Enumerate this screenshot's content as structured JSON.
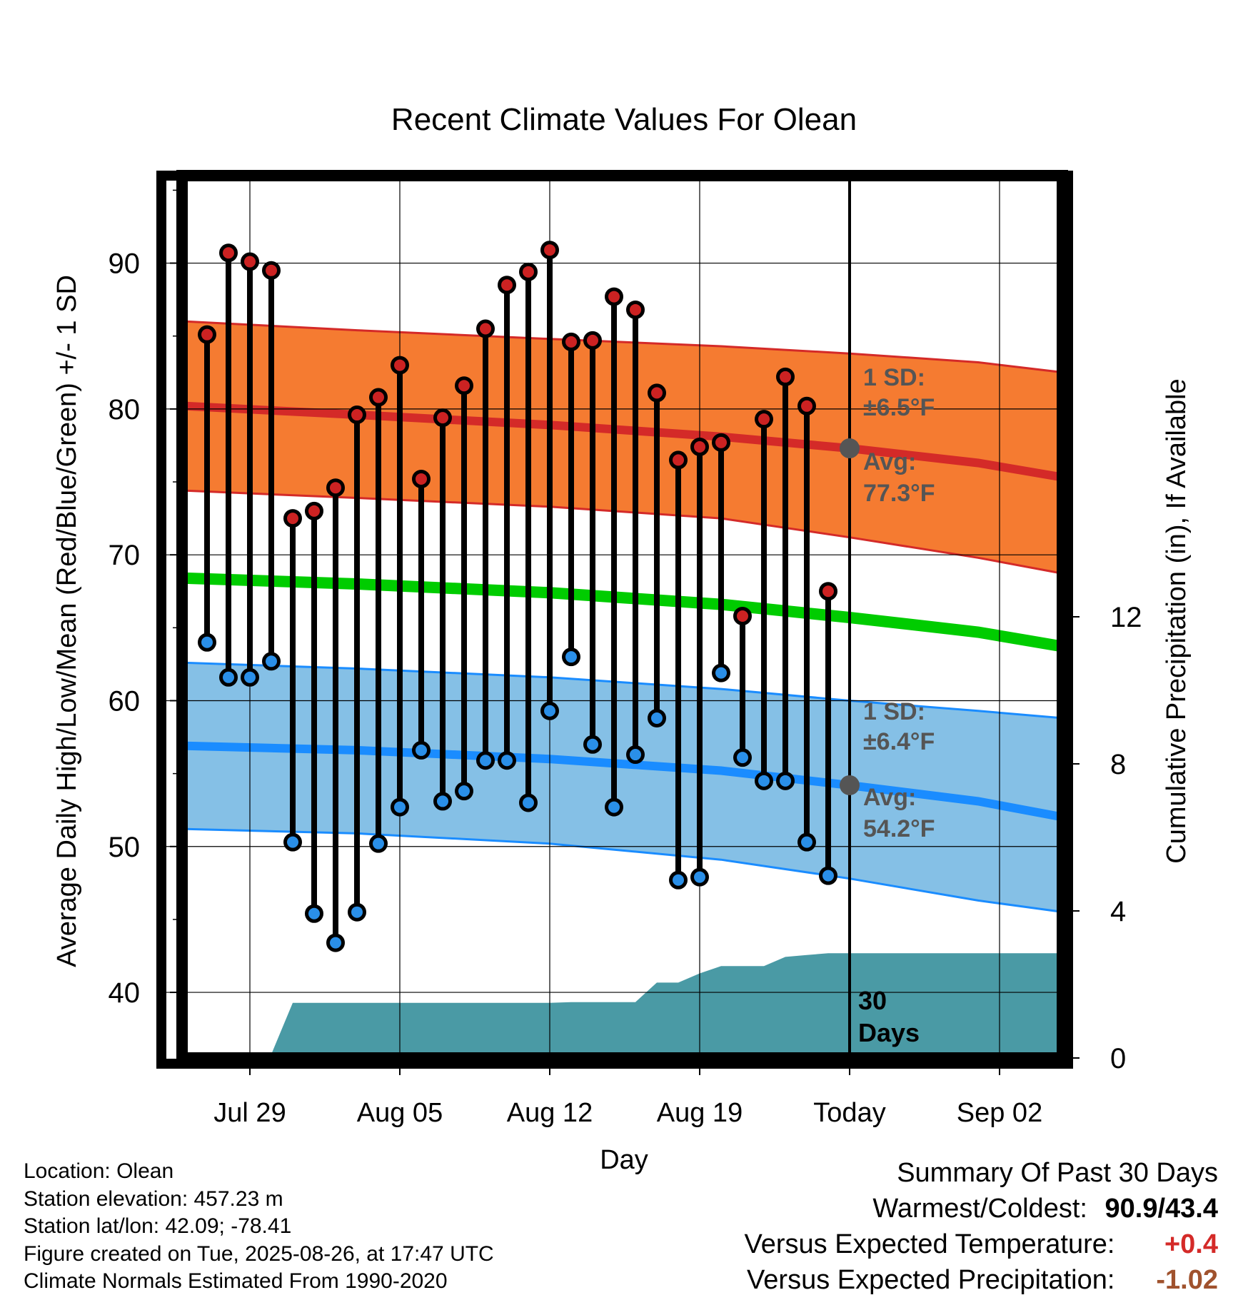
{
  "chart_data": {
    "type": "line",
    "title": "Recent Climate Values For Olean",
    "xlabel": "Day",
    "ylabel": "Average Daily High/Low/Mean (Red/Blue/Green) +/- 1 SD",
    "ylabel_right": "Cumulative Precipitation (in), If Available",
    "ylim": [
      35.5,
      96
    ],
    "ylim_right": [
      0,
      24
    ],
    "yticks": [
      40,
      50,
      60,
      70,
      80,
      90
    ],
    "yticks_right": [
      0,
      4,
      8,
      12
    ],
    "xticks": [
      {
        "day": 0,
        "label": "Jul 29"
      },
      {
        "day": 7,
        "label": "Aug 05"
      },
      {
        "day": 14,
        "label": "Aug 12"
      },
      {
        "day": 21,
        "label": "Aug 19"
      },
      {
        "day": 28,
        "label": "Today"
      },
      {
        "day": 35,
        "label": "Sep 02"
      }
    ],
    "today_day": 28,
    "xlim": [
      -3,
      38
    ],
    "x_start_date": "2025-07-29",
    "observations": {
      "days": [
        -2,
        -1,
        0,
        1,
        2,
        3,
        4,
        5,
        6,
        7,
        8,
        9,
        10,
        11,
        12,
        13,
        14,
        15,
        16,
        17,
        18,
        19,
        20,
        21,
        22,
        23,
        24,
        25,
        26,
        27
      ],
      "highs": [
        85.1,
        90.7,
        90.1,
        89.5,
        72.5,
        73.0,
        74.6,
        79.6,
        80.8,
        83.0,
        75.2,
        79.4,
        81.6,
        85.5,
        88.5,
        89.4,
        90.9,
        84.6,
        84.7,
        87.7,
        86.8,
        81.1,
        76.5,
        77.4,
        77.7,
        65.8,
        79.3,
        82.2,
        80.2,
        67.5
      ],
      "lows": [
        64.0,
        61.6,
        61.6,
        62.7,
        50.3,
        45.4,
        43.4,
        45.5,
        50.2,
        52.7,
        56.6,
        53.1,
        53.8,
        55.9,
        55.9,
        53.0,
        59.3,
        63.0,
        57.0,
        52.7,
        56.3,
        58.8,
        47.7,
        47.9,
        61.9,
        56.1,
        54.5,
        54.5,
        50.3,
        48.0
      ]
    },
    "normals": {
      "days": [
        -3,
        5,
        14,
        22,
        28,
        34,
        38
      ],
      "high_mean": [
        80.2,
        79.6,
        78.9,
        78.1,
        77.3,
        76.3,
        75.3
      ],
      "high_upper": [
        86.0,
        85.4,
        84.8,
        84.3,
        83.8,
        83.2,
        82.5
      ],
      "high_lower": [
        74.4,
        73.9,
        73.3,
        72.5,
        71.2,
        69.8,
        68.7
      ],
      "mean": [
        68.4,
        68.0,
        67.4,
        66.6,
        65.7,
        64.7,
        63.7
      ],
      "low_mean": [
        56.9,
        56.6,
        56.0,
        55.2,
        54.2,
        53.1,
        52.0
      ],
      "low_upper": [
        62.6,
        62.2,
        61.6,
        60.8,
        60.0,
        59.3,
        58.8
      ],
      "low_lower": [
        51.2,
        50.9,
        50.2,
        49.1,
        47.8,
        46.3,
        45.5
      ]
    },
    "precipitation": {
      "days": [
        -3,
        -2.5,
        -1,
        0,
        1,
        2,
        3,
        4,
        5,
        6,
        7,
        8,
        9,
        10,
        11,
        12,
        13,
        14,
        15,
        16,
        17,
        18,
        19,
        20,
        21,
        22,
        23,
        24,
        25,
        26,
        27,
        28,
        38
      ],
      "cumulative": [
        0.0,
        0.1,
        0.1,
        0.1,
        0.1,
        1.5,
        1.5,
        1.5,
        1.5,
        1.5,
        1.5,
        1.5,
        1.5,
        1.5,
        1.5,
        1.5,
        1.5,
        1.5,
        1.52,
        1.52,
        1.52,
        1.52,
        2.05,
        2.05,
        2.3,
        2.5,
        2.5,
        2.5,
        2.75,
        2.8,
        2.85,
        2.85,
        2.85
      ]
    },
    "annotations": {
      "high_sd_label": "1 SD:",
      "high_sd_value": "±6.5°F",
      "high_avg_label": "Avg:",
      "high_avg_value": "77.3°F",
      "low_sd_label": "1 SD:",
      "low_sd_value": "±6.4°F",
      "low_avg_label": "Avg:",
      "low_avg_value": "54.2°F",
      "days_count": "30",
      "days_word": "Days"
    },
    "colors": {
      "high_band": "#f57b31",
      "high_line": "#d42a28",
      "low_band": "#85c0e6",
      "low_line": "#1a8cff",
      "mean_line": "#00cc00",
      "precip": "#4a9aa5",
      "high_dot": "#cc2222",
      "low_dot": "#2a8fe8"
    }
  },
  "info": {
    "location": "Location: Olean",
    "elevation": "Station elevation: 457.23 m",
    "latlon": "Station lat/lon: 42.09; -78.41",
    "created": "Figure created on Tue, 2025-08-26, at 17:47 UTC",
    "normals": "Climate Normals Estimated From 1990-2020"
  },
  "summary": {
    "title": "Summary Of Past 30 Days",
    "warm_cold_label": "Warmest/Coldest:",
    "warm_cold_value": "90.9/43.4",
    "temp_label": "Versus Expected Temperature:",
    "temp_value": "+0.4",
    "temp_color": "#d42a28",
    "precip_label": "Versus Expected Precipitation:",
    "precip_value": "-1.02",
    "precip_color": "#a0522d"
  }
}
